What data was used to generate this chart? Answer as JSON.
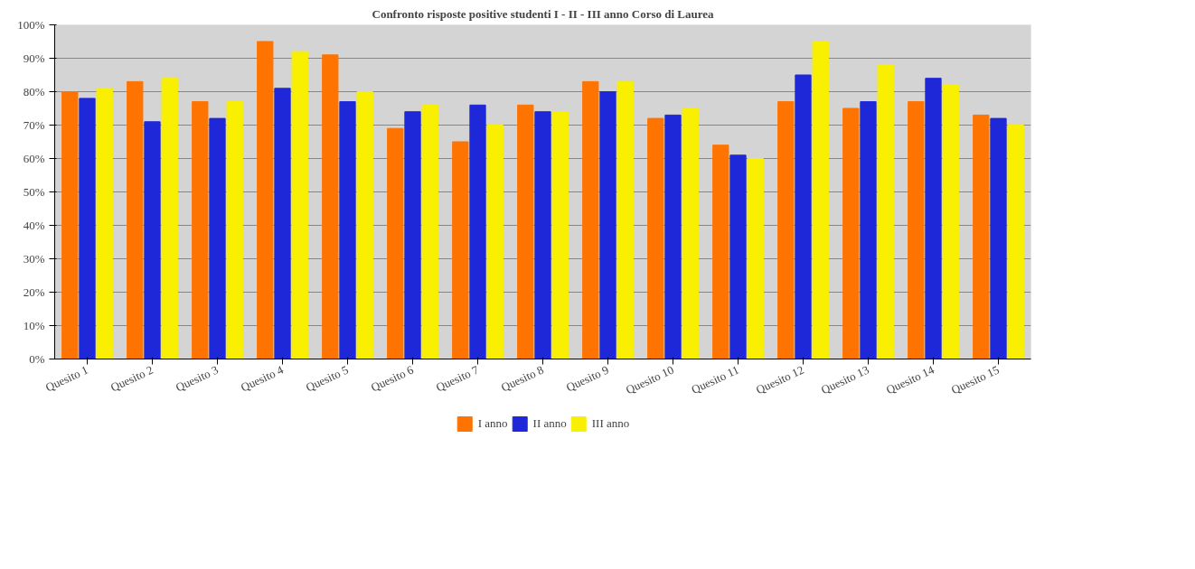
{
  "chart_data": {
    "type": "bar",
    "title": "Confronto risposte positive studenti I - II - III anno Corso di Laurea",
    "categories": [
      "Quesito 1",
      "Quesito 2",
      "Quesito 3",
      "Quesito 4",
      "Quesito 5",
      "Quesito 6",
      "Quesito 7",
      "Quesito 8",
      "Quesito 9",
      "Quesito 10",
      "Quesito 11",
      "Quesito 12",
      "Quesito 13",
      "Quesito 14",
      "Quesito 15"
    ],
    "series": [
      {
        "name": "I anno",
        "color": "#ff7300",
        "values": [
          80,
          83,
          77,
          95,
          91,
          69,
          65,
          76,
          83,
          72,
          64,
          77,
          75,
          77,
          73
        ]
      },
      {
        "name": "II anno",
        "color": "#1f28d8",
        "values": [
          78,
          71,
          72,
          81,
          77,
          74,
          76,
          74,
          80,
          73,
          61,
          85,
          77,
          84,
          72
        ]
      },
      {
        "name": "III anno",
        "color": "#f8f000",
        "values": [
          81,
          84,
          77,
          92,
          80,
          76,
          70,
          74,
          83,
          75,
          60,
          95,
          88,
          82,
          70
        ]
      }
    ],
    "ylim": [
      0,
      100
    ],
    "yticks": [
      {
        "value": 0,
        "label": "0%"
      },
      {
        "value": 10,
        "label": "10%"
      },
      {
        "value": 20,
        "label": "20%"
      },
      {
        "value": 30,
        "label": "30%"
      },
      {
        "value": 40,
        "label": "40%"
      },
      {
        "value": 50,
        "label": "50%"
      },
      {
        "value": 60,
        "label": "60%"
      },
      {
        "value": 70,
        "label": "70%"
      },
      {
        "value": 80,
        "label": "80%"
      },
      {
        "value": 90,
        "label": "90%"
      },
      {
        "value": 100,
        "label": "100%"
      }
    ],
    "grid": "y",
    "legend": "bottom"
  }
}
